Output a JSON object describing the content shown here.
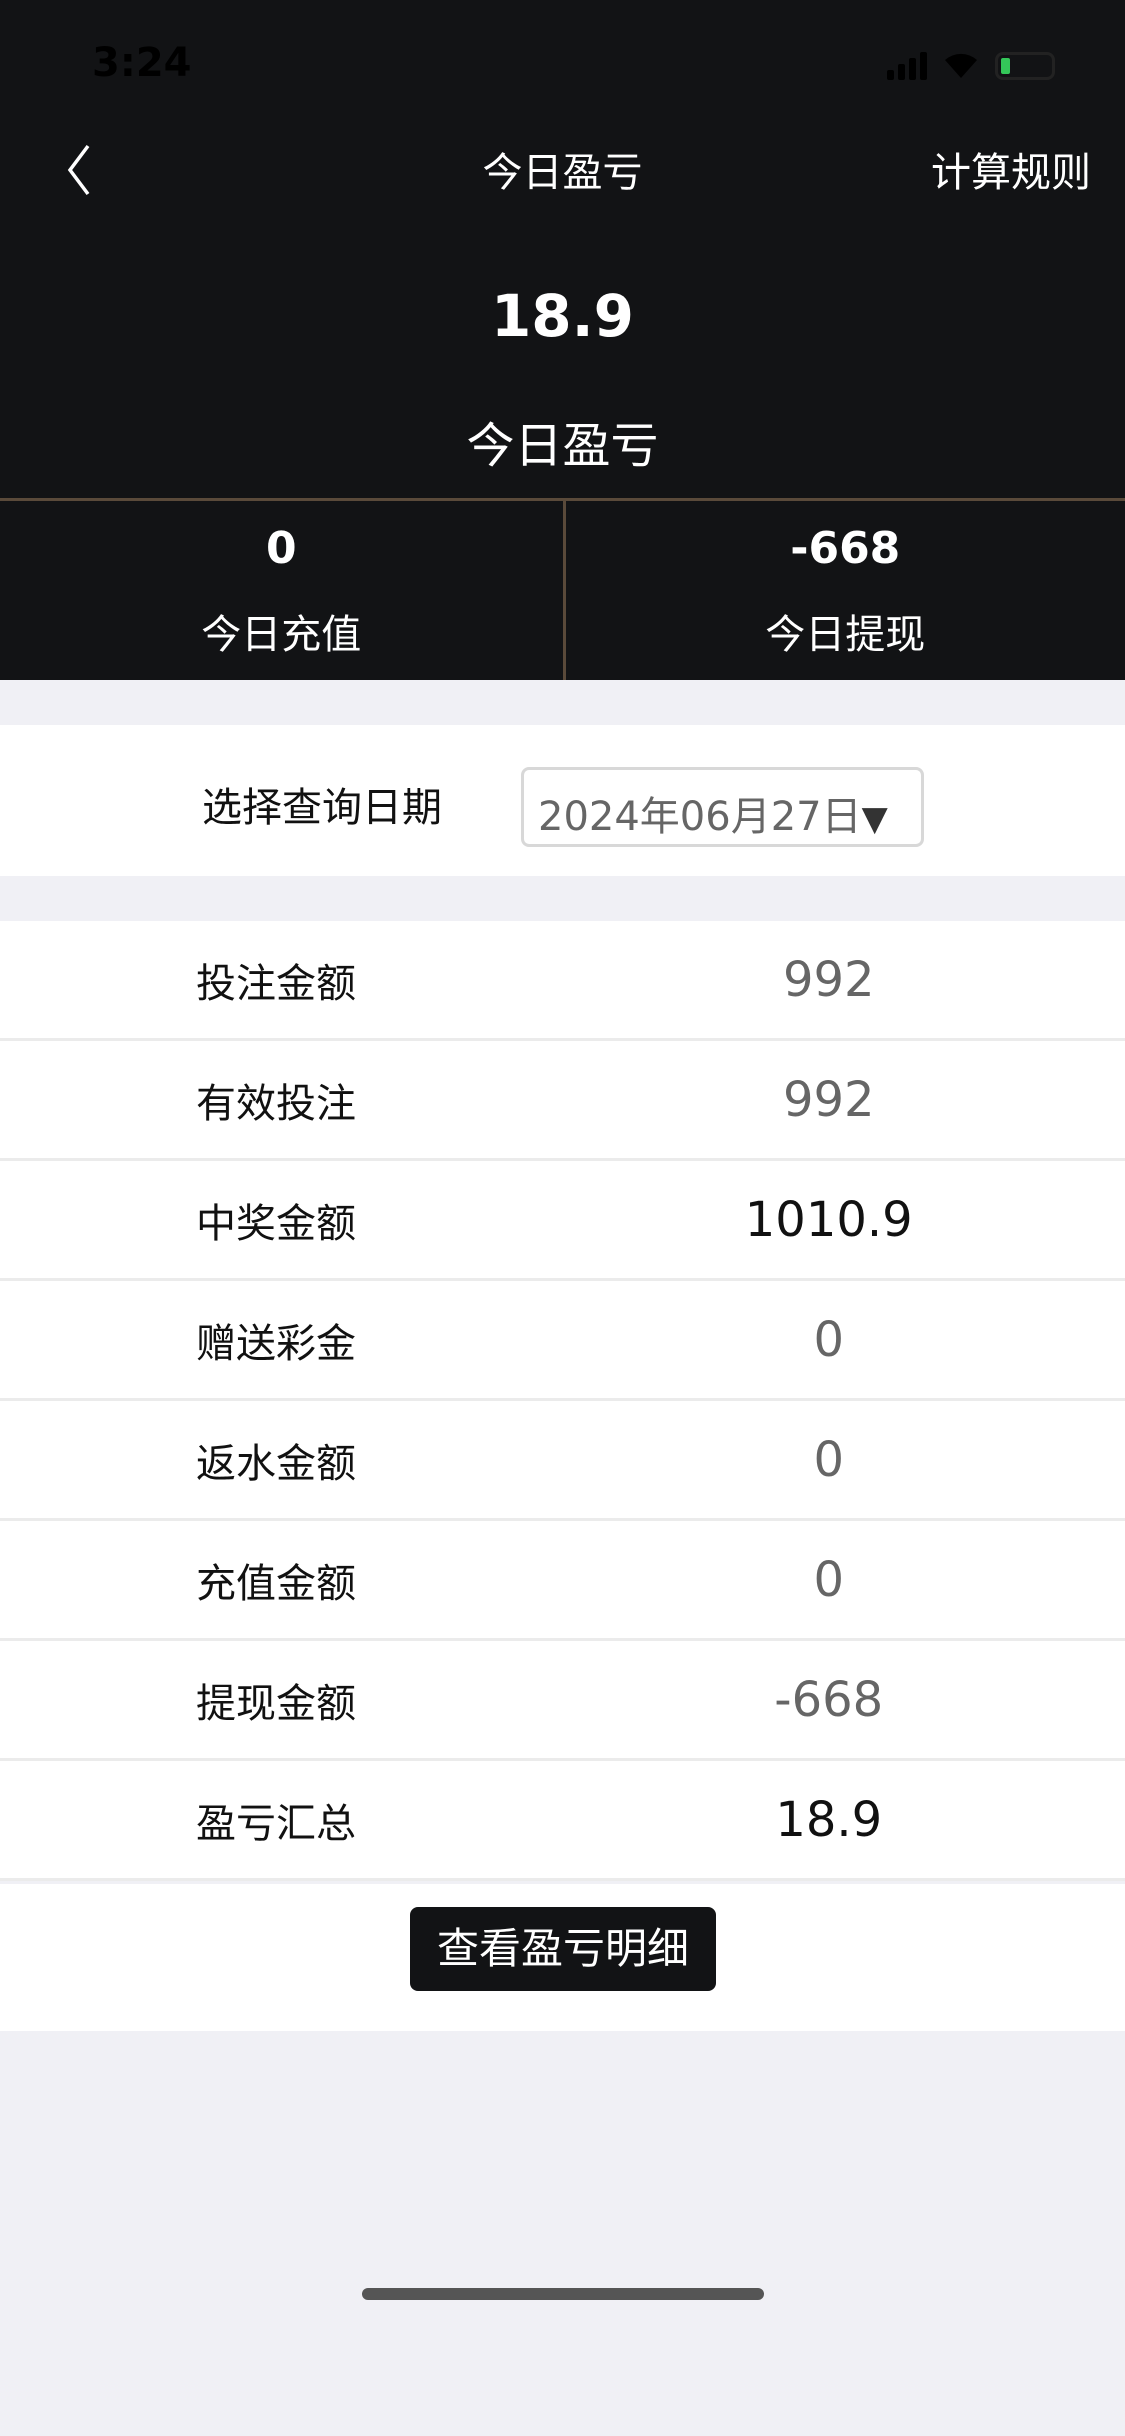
{
  "status_bar": {
    "time": "3:24"
  },
  "nav": {
    "title": "今日盈亏",
    "rule_label": "计算规则"
  },
  "summary": {
    "value": "18.9",
    "label": "今日盈亏"
  },
  "split": [
    {
      "value": "0",
      "label": "今日充值"
    },
    {
      "value": "-668",
      "label": "今日提现"
    }
  ],
  "date_filter": {
    "label": "选择查询日期",
    "value": "2024年06月27日"
  },
  "rows": [
    {
      "label": "投注金额",
      "value": "992"
    },
    {
      "label": "有效投注",
      "value": "992"
    },
    {
      "label": "中奖金额",
      "value": "1010.9"
    },
    {
      "label": "赠送彩金",
      "value": "0"
    },
    {
      "label": "返水金额",
      "value": "0"
    },
    {
      "label": "充值金额",
      "value": "0"
    },
    {
      "label": "提现金额",
      "value": "-668"
    },
    {
      "label": "盈亏汇总",
      "value": "18.9"
    }
  ],
  "detail_button": "查看盈亏明细",
  "colors": {
    "header_bg": "#121315",
    "divider": "#5a4a3a",
    "battery": "#34c759"
  }
}
